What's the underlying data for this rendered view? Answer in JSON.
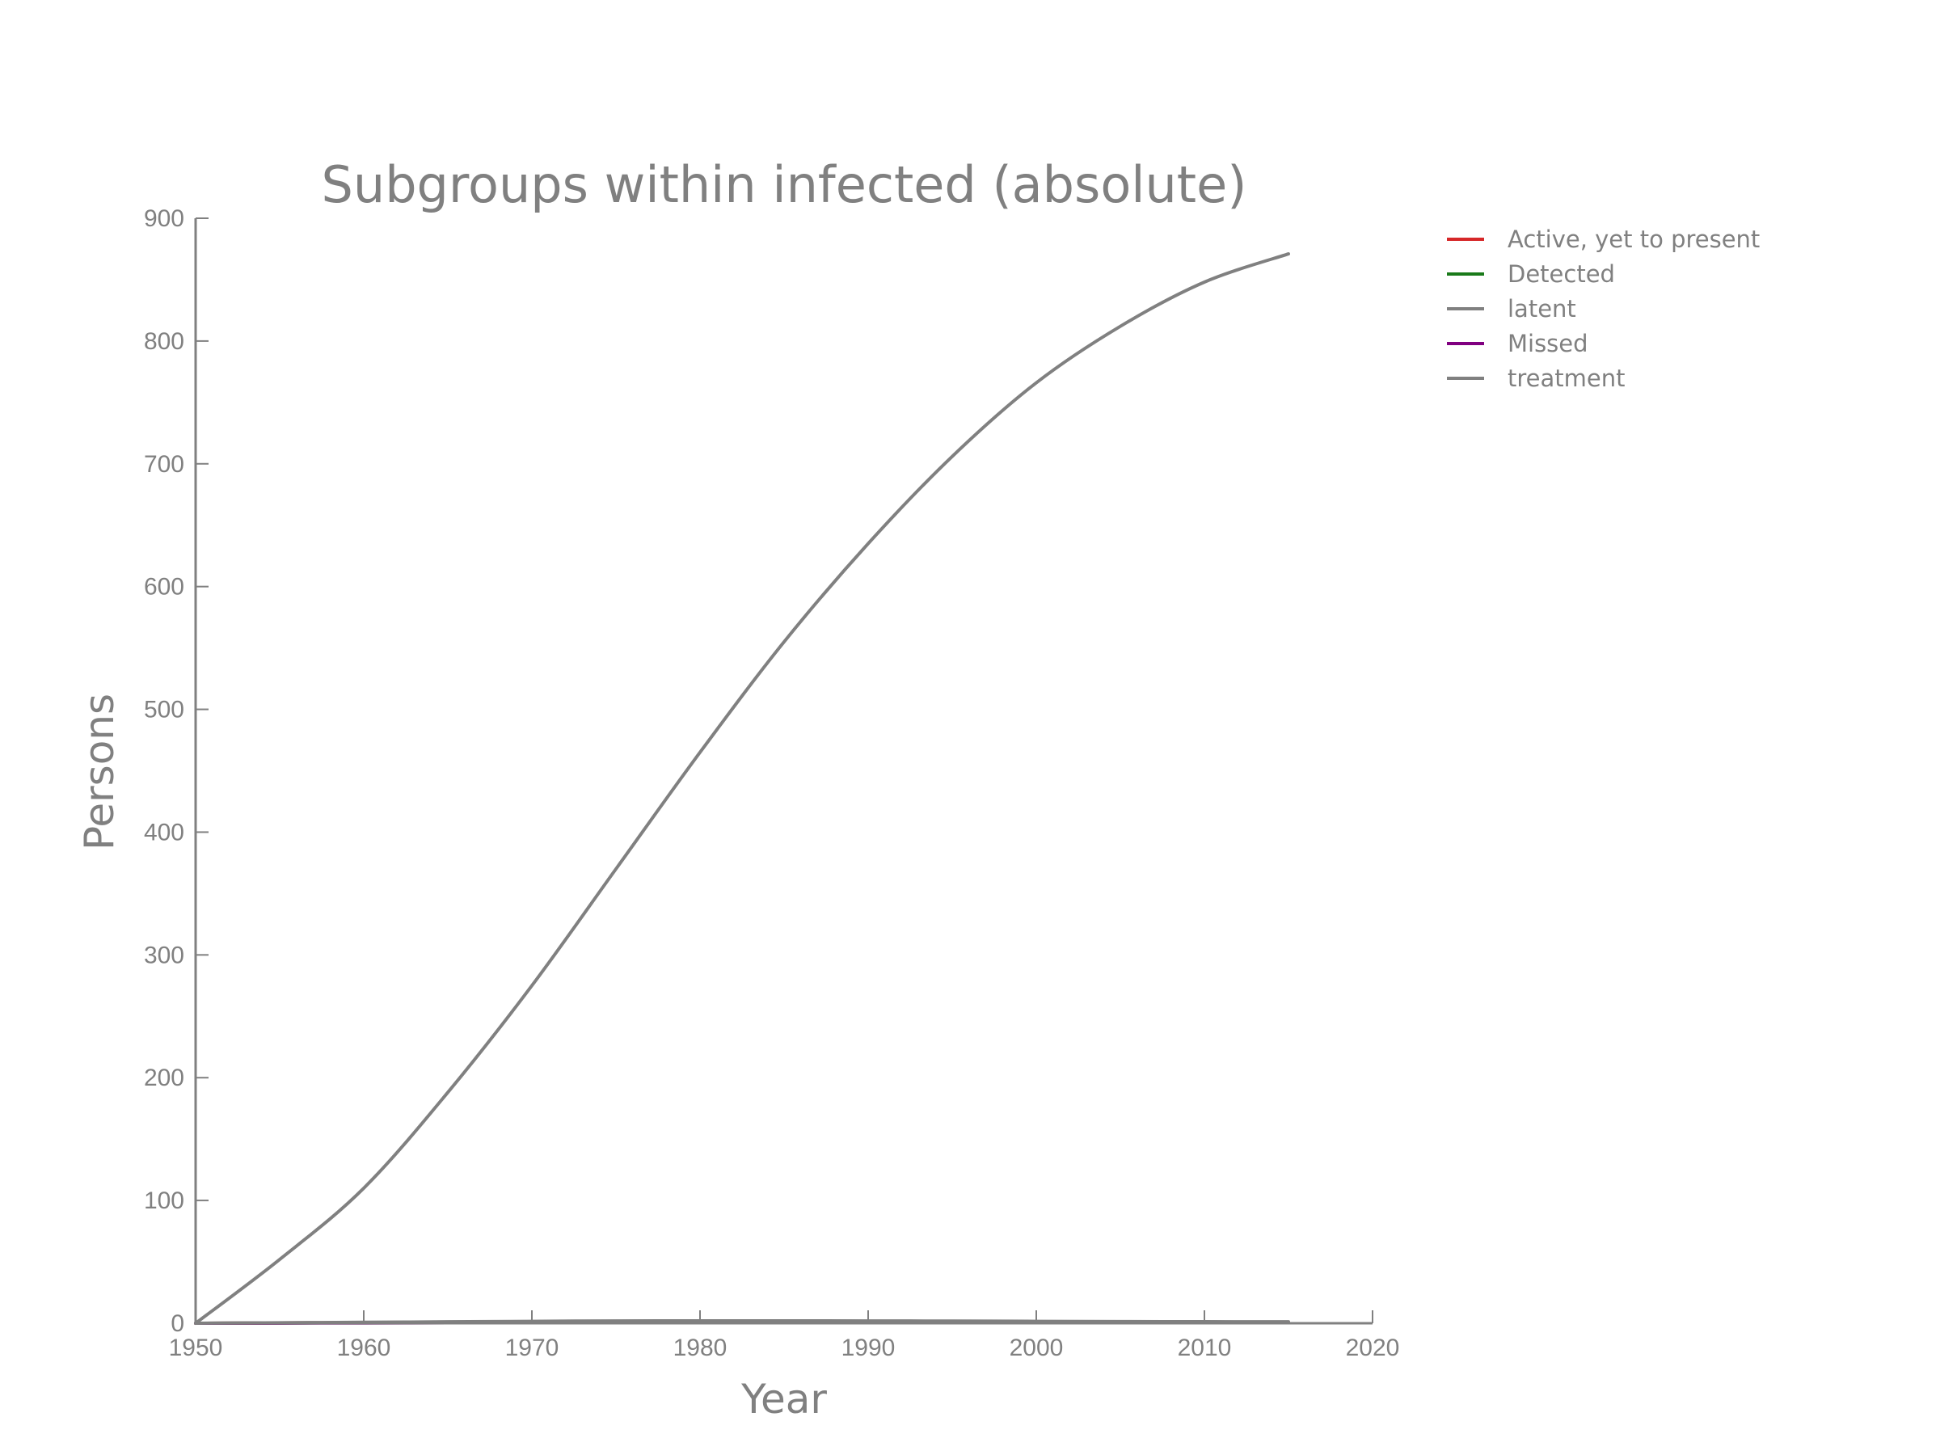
{
  "chart_data": {
    "type": "line",
    "title": "Subgroups within infected (absolute)",
    "xlabel": "Year",
    "ylabel": "Persons",
    "xlim": [
      1950,
      2020
    ],
    "ylim": [
      0,
      900
    ],
    "xticks": [
      1950,
      1960,
      1970,
      1980,
      1990,
      2000,
      2010,
      2020
    ],
    "yticks": [
      0,
      100,
      200,
      300,
      400,
      500,
      600,
      700,
      800,
      900
    ],
    "grid": false,
    "legend_position": "outside right, top",
    "x": [
      1950,
      1955,
      1960,
      1965,
      1970,
      1975,
      1980,
      1985,
      1990,
      1995,
      2000,
      2005,
      2010,
      2015
    ],
    "series": [
      {
        "name": "Active, yet to present",
        "color": "#d62728",
        "values": [
          0,
          0.3,
          0.6,
          0.9,
          1.2,
          1.4,
          1.5,
          1.5,
          1.4,
          1.3,
          1.2,
          1.0,
          0.9,
          0.8
        ]
      },
      {
        "name": "Detected",
        "color": "#1a7a1a",
        "values": [
          0,
          0.2,
          0.4,
          0.6,
          0.8,
          0.9,
          1.0,
          1.0,
          0.9,
          0.8,
          0.7,
          0.6,
          0.5,
          0.5
        ]
      },
      {
        "name": "latent",
        "color": "#808080",
        "values": [
          0,
          52,
          110,
          188,
          275,
          370,
          465,
          555,
          635,
          706,
          766,
          812,
          848,
          871
        ]
      },
      {
        "name": "Missed",
        "color": "#800080",
        "values": [
          0,
          0.1,
          0.2,
          0.3,
          0.4,
          0.5,
          0.5,
          0.5,
          0.5,
          0.4,
          0.4,
          0.3,
          0.3,
          0.3
        ]
      },
      {
        "name": "treatment",
        "color": "#808080",
        "values": [
          0,
          0.4,
          0.8,
          1.2,
          1.6,
          1.9,
          2.0,
          2.0,
          1.9,
          1.8,
          1.6,
          1.4,
          1.3,
          1.2
        ]
      }
    ]
  }
}
